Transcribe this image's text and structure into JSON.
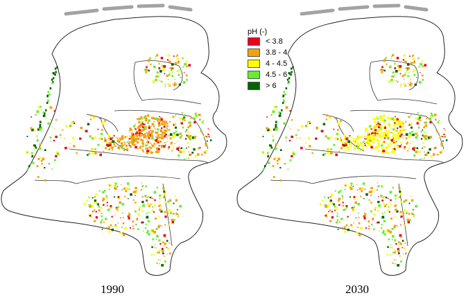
{
  "legend": {
    "title": "pH (-)",
    "items": [
      {
        "label": "< 3.8",
        "color": "#e8001c"
      },
      {
        "label": "3.8 - 4",
        "color": "#f2a20c"
      },
      {
        "label": "4 - 4.5",
        "color": "#ffff00"
      },
      {
        "label": "4.5 - 6",
        "color": "#66ee33"
      },
      {
        "label": "> 6",
        "color": "#006400"
      }
    ]
  },
  "maps": [
    {
      "year": "1990",
      "core_class": 1
    },
    {
      "year": "2030",
      "core_class": 2
    }
  ]
}
